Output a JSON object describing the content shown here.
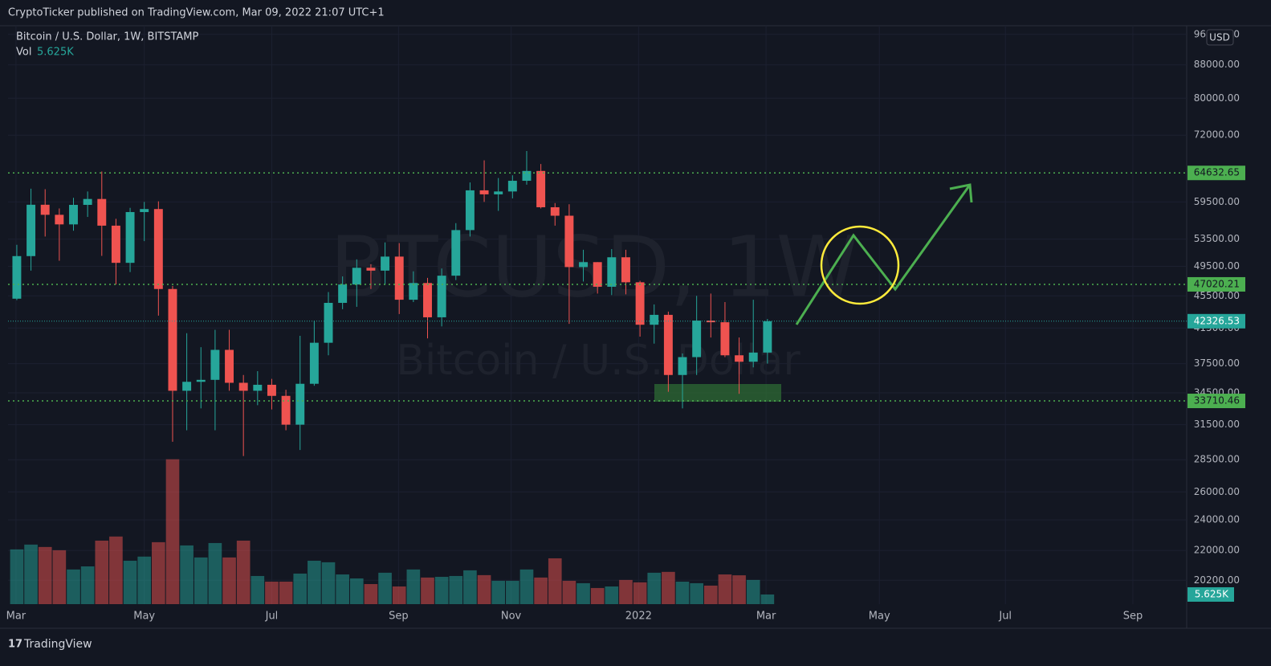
{
  "header": "CryptoTicker published on TradingView.com, Mar 09, 2022 21:07 UTC+1",
  "footer": "TradingView",
  "chart_data": {
    "type": "candlestick",
    "title": "Bitcoin / U.S. Dollar, 1W, BITSTAMP",
    "watermark": "BTCUSD, 1W",
    "watermark_subtitle": "Bitcoin / U.S. Dollar",
    "currency": "USD",
    "log_scale": true,
    "up_color": "#26a69a",
    "down_color": "#ef5350",
    "level_color": "#4caf50",
    "open": [
      45135,
      50971,
      59020,
      57350,
      55800,
      59000,
      60000,
      55600,
      50000,
      57800,
      58300,
      46400,
      34700,
      35600,
      35800,
      39000,
      35500,
      34700,
      35300,
      34200,
      31500,
      35400,
      39800,
      44600,
      47000,
      49300,
      48900,
      50900,
      45000,
      47200,
      42800,
      48200,
      54900,
      61500,
      60800,
      61300,
      63200,
      65000,
      58600,
      57200,
      49400,
      50100,
      46700,
      50800,
      47300,
      41900,
      43100,
      36300,
      38200,
      42400,
      42200,
      38400,
      37700,
      38700
    ],
    "high": [
      52640,
      61788,
      61700,
      58400,
      60200,
      61300,
      64900,
      56700,
      58500,
      59500,
      59600,
      46800,
      40900,
      39300,
      41300,
      41300,
      36300,
      36700,
      35900,
      34800,
      40600,
      42400,
      46000,
      48100,
      50500,
      49800,
      53000,
      52900,
      48800,
      47900,
      49200,
      56000,
      62900,
      67000,
      63700,
      64200,
      68800,
      66300,
      59300,
      59100,
      51900,
      50100,
      52000,
      51900,
      47500,
      44400,
      43500,
      38600,
      45500,
      45800,
      44700,
      40400,
      45000,
      42600
    ],
    "low": [
      44950,
      48900,
      53900,
      50300,
      54800,
      57000,
      51000,
      47000,
      48700,
      53200,
      43000,
      30000,
      31000,
      33000,
      31000,
      34700,
      28800,
      33300,
      32900,
      31000,
      29300,
      35200,
      38400,
      43800,
      44100,
      46400,
      47000,
      43200,
      44700,
      40300,
      41700,
      47600,
      53900,
      59500,
      58000,
      60100,
      62500,
      58400,
      55600,
      42000,
      47400,
      45800,
      45600,
      45700,
      40500,
      39700,
      34600,
      33000,
      36300,
      40400,
      38200,
      34400,
      37100,
      37500
    ],
    "close": [
      50971,
      59020,
      57350,
      55800,
      59000,
      60000,
      55600,
      50000,
      57800,
      58300,
      46400,
      34700,
      35600,
      35800,
      39000,
      35500,
      34700,
      35300,
      34200,
      31500,
      35400,
      39800,
      44600,
      47000,
      49300,
      48900,
      50900,
      45000,
      47200,
      42800,
      48200,
      54900,
      61500,
      60800,
      61300,
      63200,
      65000,
      58600,
      57200,
      49400,
      50100,
      46700,
      50800,
      47300,
      41900,
      43100,
      36300,
      38200,
      42400,
      42200,
      38400,
      37700,
      38700,
      42326.53
    ],
    "volume": {
      "name": "Vol",
      "last_label": "5.625K",
      "ylim": [
        0,
        337000
      ],
      "values": [
        31900,
        34700,
        33300,
        31400,
        20200,
        22000,
        37000,
        39400,
        25300,
        27700,
        36100,
        84400,
        34200,
        27200,
        35600,
        27200,
        37000,
        16400,
        13100,
        13100,
        17800,
        25300,
        24400,
        17300,
        15000,
        11700,
        18300,
        10300,
        20200,
        15500,
        15900,
        16400,
        19700,
        16900,
        13600,
        13600,
        20200,
        15500,
        26700,
        13600,
        12200,
        9400,
        10300,
        14100,
        12700,
        18300,
        18800,
        13100,
        12200,
        10800,
        17300,
        16800,
        14100,
        5625
      ]
    },
    "levels": [
      64632.65,
      47020.21,
      33710.46
    ],
    "ylim": [
      18870,
      98400
    ],
    "yticks": [
      {
        "value": 20200,
        "label": "20200.00"
      },
      {
        "value": 22000,
        "label": "22000.00"
      },
      {
        "value": 24000,
        "label": "24000.00"
      },
      {
        "value": 26000,
        "label": "26000.00"
      },
      {
        "value": 28500,
        "label": "28500.00"
      },
      {
        "value": 31500,
        "label": "31500.00"
      },
      {
        "value": 34500,
        "label": "34500.00"
      },
      {
        "value": 37500,
        "label": "37500.00"
      },
      {
        "value": 41500,
        "label": "41500.00"
      },
      {
        "value": 45500,
        "label": "45500.00"
      },
      {
        "value": 49500,
        "label": "49500.00"
      },
      {
        "value": 53500,
        "label": "53500.00"
      },
      {
        "value": 59500,
        "label": "59500.00"
      },
      {
        "value": 72000,
        "label": "72000.00"
      },
      {
        "value": 80000,
        "label": "80000.00"
      },
      {
        "value": 88000,
        "label": "88000.00"
      },
      {
        "value": 96000,
        "label": "96000.00"
      }
    ],
    "xlim": [
      -0.62,
      82.6
    ],
    "xticks": [
      {
        "value": -0.06,
        "label": "Mar"
      },
      {
        "value": 9.0,
        "label": "May"
      },
      {
        "value": 18.0,
        "label": "Jul"
      },
      {
        "value": 26.95,
        "label": "Sep"
      },
      {
        "value": 34.9,
        "label": "Nov"
      },
      {
        "value": 43.9,
        "label": "2022"
      },
      {
        "value": 52.9,
        "label": "Mar"
      },
      {
        "value": 60.9,
        "label": "May"
      },
      {
        "value": 69.8,
        "label": "Jul"
      },
      {
        "value": 78.8,
        "label": "Sep"
      }
    ]
  }
}
